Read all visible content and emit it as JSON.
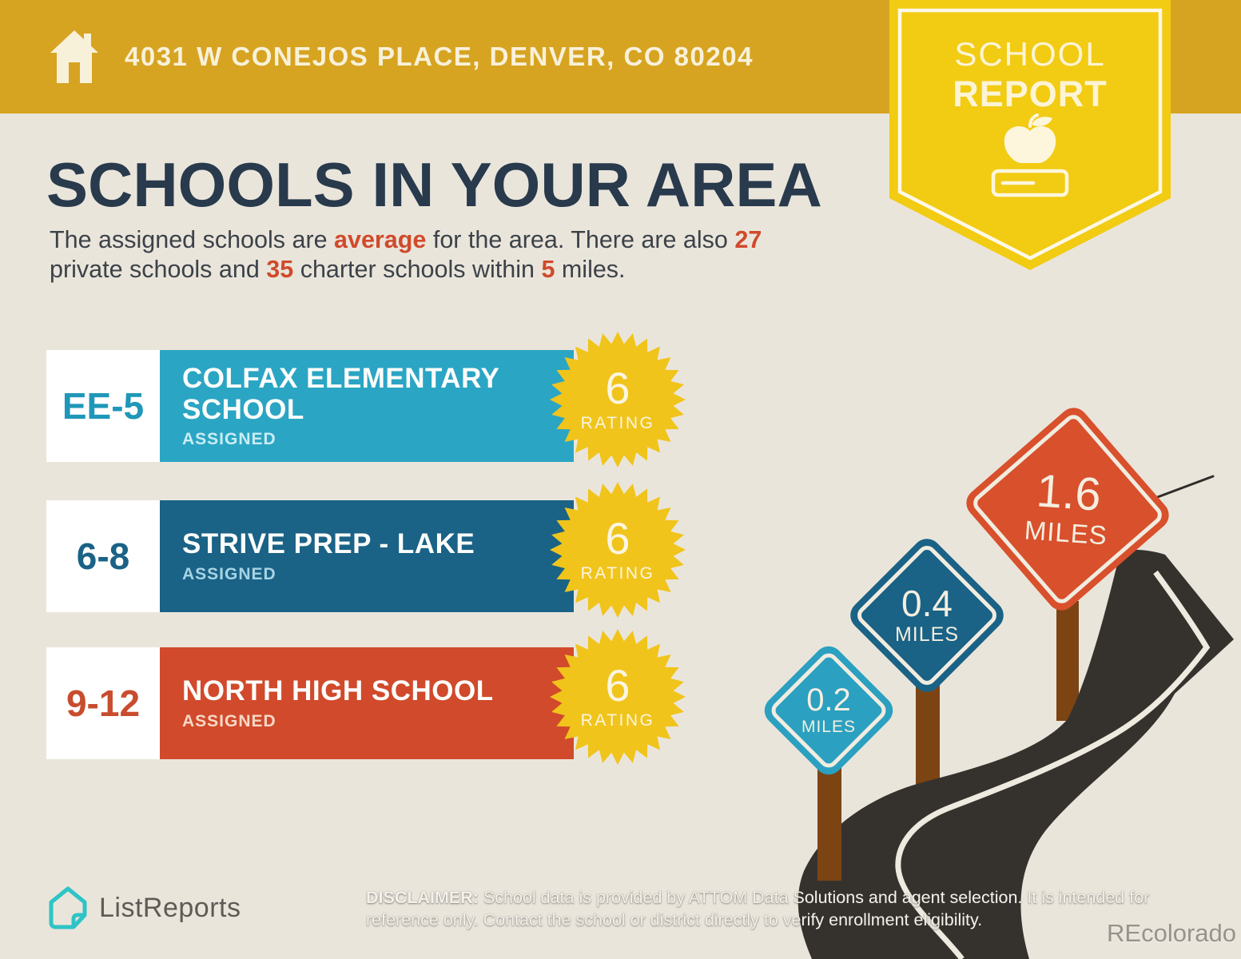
{
  "header": {
    "address": "4031 W CONEJOS PLACE, DENVER, CO 80204"
  },
  "badge": {
    "line1": "SCHOOL",
    "line2": "REPORT"
  },
  "page": {
    "title": "SCHOOLS IN YOUR AREA"
  },
  "subtitle": {
    "s1": "The assigned schools are ",
    "hl1": "average",
    "s2": " for the area. There are also ",
    "hl2": "27",
    "s3": " private schools and ",
    "hl3": "35",
    "s4": " charter schools within ",
    "hl4": "5",
    "s5": " miles."
  },
  "schools": [
    {
      "grades": "EE-5",
      "name": "COLFAX ELEMENTARY SCHOOL",
      "status": "ASSIGNED",
      "rating": "6",
      "rating_label": "RATING",
      "bar_color": "#2BA5C4"
    },
    {
      "grades": "6-8",
      "name": "STRIVE PREP - LAKE",
      "status": "ASSIGNED",
      "rating": "6",
      "rating_label": "RATING",
      "bar_color": "#1A6286"
    },
    {
      "grades": "9-12",
      "name": "NORTH HIGH SCHOOL",
      "status": "ASSIGNED",
      "rating": "6",
      "rating_label": "RATING",
      "bar_color": "#D14A2B"
    }
  ],
  "signs": [
    {
      "distance": "0.2",
      "unit": "MILES",
      "color": "#2BA0C0"
    },
    {
      "distance": "0.4",
      "unit": "MILES",
      "color": "#1A6286"
    },
    {
      "distance": "1.6",
      "unit": "MILES",
      "color": "#D8502C"
    }
  ],
  "footer": {
    "brand": "ListReports",
    "disclaimer_label": "DISCLAIMER:",
    "disclaimer_text": " School data is provided by ATTOM Data Solutions and agent selection. It is intended for reference only. Contact the school or district directly to verify enrollment eligibility.",
    "watermark": "REcolorado"
  },
  "theme": {
    "header_gold": "#D7A421",
    "badge_yellow": "#F2CB13",
    "background_cream": "#EAE5DB",
    "title_navy": "#283A4C",
    "accent_red": "#D04A2C",
    "starburst_yellow": "#F0C41B",
    "road_asphalt": "#35322E",
    "post_brown": "#7C4413",
    "logo_teal": "#2EC4C6"
  }
}
